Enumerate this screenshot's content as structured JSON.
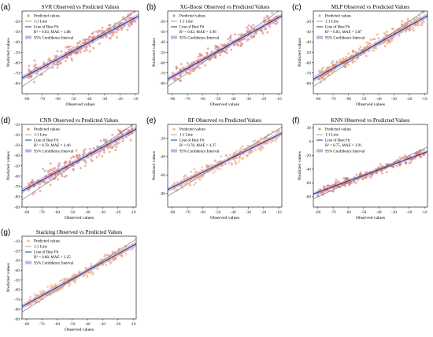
{
  "chart_data": [
    {
      "label": "(a)",
      "type": "scatter",
      "title": "SVR  Observed vs Predicted Values",
      "xlabel": "Observed values",
      "ylabel": "Predicted values",
      "xlim": [
        -83,
        -8
      ],
      "ylim": [
        -90,
        -10
      ],
      "xticks": [
        -80,
        -70,
        -60,
        -50,
        -40,
        -30,
        -20,
        -10
      ],
      "yticks": [
        -80,
        -70,
        -60,
        -50,
        -40,
        -30,
        -20
      ],
      "point_color": "#d9776e",
      "series": [
        {
          "name": "Predicted values"
        },
        {
          "name": "1:1 Line"
        },
        {
          "name": "Line of Best Fit"
        },
        {
          "name": "95% Confidence Interval"
        }
      ],
      "stats": "R² = 0.83, MAE = 3.88",
      "fit": {
        "slope": 0.8,
        "intercept": -8.5
      },
      "cloud": {
        "xmin": -80,
        "xmax": -10,
        "spread": 7,
        "n": 230,
        "seed": 11
      }
    },
    {
      "label": "(b)",
      "type": "scatter",
      "title": "XG-Boost  Observed vs Predicted Values",
      "xlabel": "Observed values",
      "ylabel": "Predicted values",
      "xlim": [
        -83,
        -8
      ],
      "ylim": [
        -90,
        -10
      ],
      "xticks": [
        -80,
        -70,
        -60,
        -50,
        -40,
        -30,
        -20,
        -10
      ],
      "yticks": [
        -80,
        -70,
        -60,
        -50,
        -40,
        -30,
        -20
      ],
      "point_color": "#d9776e",
      "series": [
        {
          "name": "Predicted values"
        },
        {
          "name": "1:1 Line"
        },
        {
          "name": "Line of Best Fit"
        },
        {
          "name": "95% Confidence Interval"
        }
      ],
      "stats": "R² = 0.82, MAE = 3.96",
      "fit": {
        "slope": 0.82,
        "intercept": -8
      },
      "cloud": {
        "xmin": -80,
        "xmax": -10,
        "spread": 7,
        "n": 230,
        "seed": 23
      }
    },
    {
      "label": "(c)",
      "type": "scatter",
      "title": "MLP  Observed vs Predicted Values",
      "xlabel": "Observed values",
      "ylabel": "Predicted values",
      "xlim": [
        -83,
        -8
      ],
      "ylim": [
        -90,
        -10
      ],
      "xticks": [
        -80,
        -70,
        -60,
        -50,
        -40,
        -30,
        -20,
        -10
      ],
      "yticks": [
        -80,
        -70,
        -60,
        -50,
        -40,
        -30,
        -20
      ],
      "point_color": "#e58a62",
      "series": [
        {
          "name": "Predicted values"
        },
        {
          "name": "1:1 Line"
        },
        {
          "name": "Line of Best Fit"
        },
        {
          "name": "95% Confidence Interval"
        }
      ],
      "stats": "R² = 0.83, MAE = 3.87",
      "fit": {
        "slope": 0.82,
        "intercept": -8
      },
      "cloud": {
        "xmin": -80,
        "xmax": -10,
        "spread": 6,
        "n": 230,
        "seed": 37
      }
    },
    {
      "label": "(d)",
      "type": "scatter",
      "title": "CNN  Observed vs Predicted Values",
      "xlabel": "Observed values",
      "ylabel": "Predicted values",
      "xlim": [
        -83,
        -8
      ],
      "ylim": [
        -90,
        -10
      ],
      "xticks": [
        -80,
        -70,
        -60,
        -50,
        -40,
        -30,
        -20,
        -10
      ],
      "yticks": [
        -90,
        -80,
        -70,
        -60,
        -50,
        -40,
        -30,
        -20,
        -10
      ],
      "point_color": "#d9776e",
      "series": [
        {
          "name": "Predicted values"
        },
        {
          "name": "1:1 Line"
        },
        {
          "name": "Line of Best Fit"
        },
        {
          "name": "95% Confidence Interval"
        }
      ],
      "stats": "R² = 0.78, MAE = 4.46",
      "fit": {
        "slope": 0.8,
        "intercept": -8
      },
      "cloud": {
        "xmin": -80,
        "xmax": -10,
        "spread": 8,
        "n": 230,
        "seed": 41
      }
    },
    {
      "label": "(e)",
      "type": "scatter",
      "title": "RF  Observed vs Predicted Values",
      "xlabel": "Observed values",
      "ylabel": "Predicted values",
      "xlim": [
        -83,
        -8
      ],
      "ylim": [
        -95,
        -5
      ],
      "xticks": [
        -80,
        -70,
        -60,
        -50,
        -40,
        -30,
        -20,
        -10
      ],
      "yticks": [
        -80,
        -60,
        -40,
        -20
      ],
      "point_color": "#f0a07c",
      "series": [
        {
          "name": "Predicted values"
        },
        {
          "name": "1:1 Line"
        },
        {
          "name": "Line of Best Fit"
        },
        {
          "name": "95% Confidence Interval"
        }
      ],
      "stats": "R² = 0.78, MAE = 4.37",
      "fit": {
        "slope": 0.82,
        "intercept": -8
      },
      "cloud": {
        "xmin": -80,
        "xmax": -10,
        "spread": 7,
        "n": 230,
        "seed": 53
      }
    },
    {
      "label": "(f)",
      "type": "scatter",
      "title": "KNN  Observed vs Predicted Values",
      "xlabel": "Observed values",
      "ylabel": "Predicted values",
      "xlim": [
        -83,
        -8
      ],
      "ylim": [
        -95,
        25
      ],
      "xticks": [
        -80,
        -70,
        -60,
        -50,
        -40,
        -30,
        -20,
        -10
      ],
      "yticks": [
        -80,
        -60,
        -40,
        -20,
        0,
        20
      ],
      "point_color": "#d9776e",
      "series": [
        {
          "name": "Predicted values"
        },
        {
          "name": "1:1 Line"
        },
        {
          "name": "Line of Best Fit"
        },
        {
          "name": "95% Confidence Interval"
        }
      ],
      "stats": "R² = 0.75, MAE = 3.91",
      "fit": {
        "slope": 0.82,
        "intercept": -8
      },
      "cloud": {
        "xmin": -80,
        "xmax": -10,
        "spread": 6,
        "n": 230,
        "seed": 67
      }
    },
    {
      "label": "(g)",
      "type": "scatter",
      "title": "Stacking  Observed vs Predicted Values",
      "xlabel": "Observed values",
      "ylabel": "Predicted values",
      "xlim": [
        -83,
        -8
      ],
      "ylim": [
        -90,
        -5
      ],
      "xticks": [
        -80,
        -70,
        -60,
        -50,
        -40,
        -30,
        -20,
        -10
      ],
      "yticks": [
        -90,
        -80,
        -70,
        -60,
        -50,
        -40,
        -30,
        -20,
        -10
      ],
      "point_color": "#f0a07c",
      "series": [
        {
          "name": "Predicted values"
        },
        {
          "name": "1:1 Line"
        },
        {
          "name": "Line of Best Fit"
        },
        {
          "name": "95% Confidence Interval"
        }
      ],
      "stats": "R² = 0.88, MAE = 3.25",
      "fit": {
        "slope": 0.86,
        "intercept": -6
      },
      "cloud": {
        "xmin": -80,
        "xmax": -10,
        "spread": 5,
        "n": 230,
        "seed": 79
      }
    }
  ],
  "colors": {
    "fit_line": "#2b2f8f",
    "identity_line": "#8c8c8c",
    "ci_band": "#b7b8e6"
  }
}
